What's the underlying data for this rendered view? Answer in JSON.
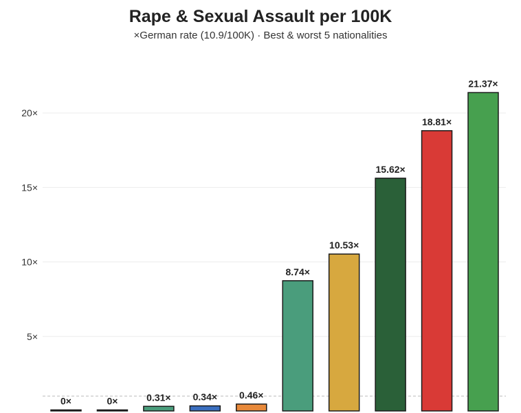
{
  "chart_data": {
    "type": "bar",
    "title": "Rape & Sexual Assault per 100K",
    "subtitle": "×German rate (10.9/100K) · Best & worst 5 nationalities",
    "categories": [
      "",
      "",
      "",
      "",
      "",
      "",
      "",
      "",
      "",
      ""
    ],
    "values": [
      0,
      0,
      0.31,
      0.34,
      0.46,
      8.74,
      10.53,
      15.62,
      18.81,
      21.37
    ],
    "data_labels": [
      "0×",
      "0×",
      "0.31×",
      "0.34×",
      "0.46×",
      "8.74×",
      "10.53×",
      "15.62×",
      "18.81×",
      "21.37×"
    ],
    "colors": [
      "#1f1f1f",
      "#1f1f1f",
      "#4a9d7c",
      "#3b6fc0",
      "#e8893a",
      "#4a9d7c",
      "#d7a83f",
      "#2a6038",
      "#d93a36",
      "#47a04f"
    ],
    "y_ticks": [
      5,
      10,
      15,
      20
    ],
    "y_tick_labels": [
      "5×",
      "10×",
      "15×",
      "20×"
    ],
    "reference_line": 1,
    "ylim": [
      0,
      22.5
    ],
    "grid": true,
    "xlabel": "",
    "ylabel": ""
  }
}
